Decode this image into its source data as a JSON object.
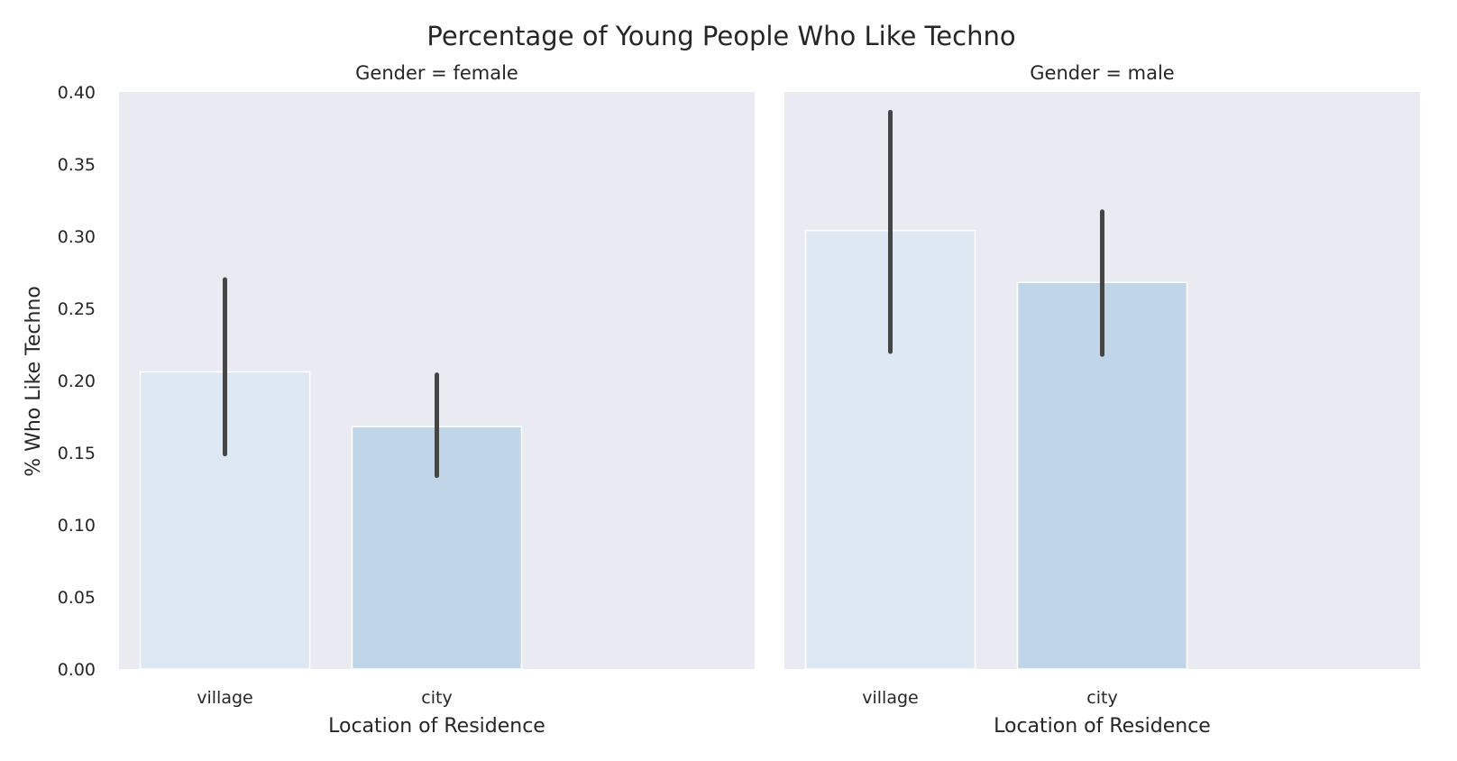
{
  "chart_data": {
    "type": "bar",
    "title": "Percentage of Young People Who Like Techno",
    "ylabel": "% Who Like Techno",
    "ylim": [
      0,
      0.4
    ],
    "yticks": [
      "0.00",
      "0.05",
      "0.10",
      "0.15",
      "0.20",
      "0.25",
      "0.30",
      "0.35",
      "0.40"
    ],
    "grid": false,
    "colors": {
      "village": "#dee8f2",
      "city": "#c0d5e7",
      "errorbar": "#454545",
      "panel_bg": "#eaeaf2",
      "text": "#262626"
    },
    "facets": [
      {
        "title": "Gender = female",
        "xlabel": "Location of Residence",
        "categories": [
          "village",
          "city"
        ],
        "values": [
          0.206,
          0.168
        ],
        "ci_low": [
          0.149,
          0.134
        ],
        "ci_high": [
          0.27,
          0.204
        ]
      },
      {
        "title": "Gender = male",
        "xlabel": "Location of Residence",
        "categories": [
          "village",
          "city"
        ],
        "values": [
          0.304,
          0.268
        ],
        "ci_low": [
          0.22,
          0.218
        ],
        "ci_high": [
          0.386,
          0.317
        ]
      }
    ]
  }
}
